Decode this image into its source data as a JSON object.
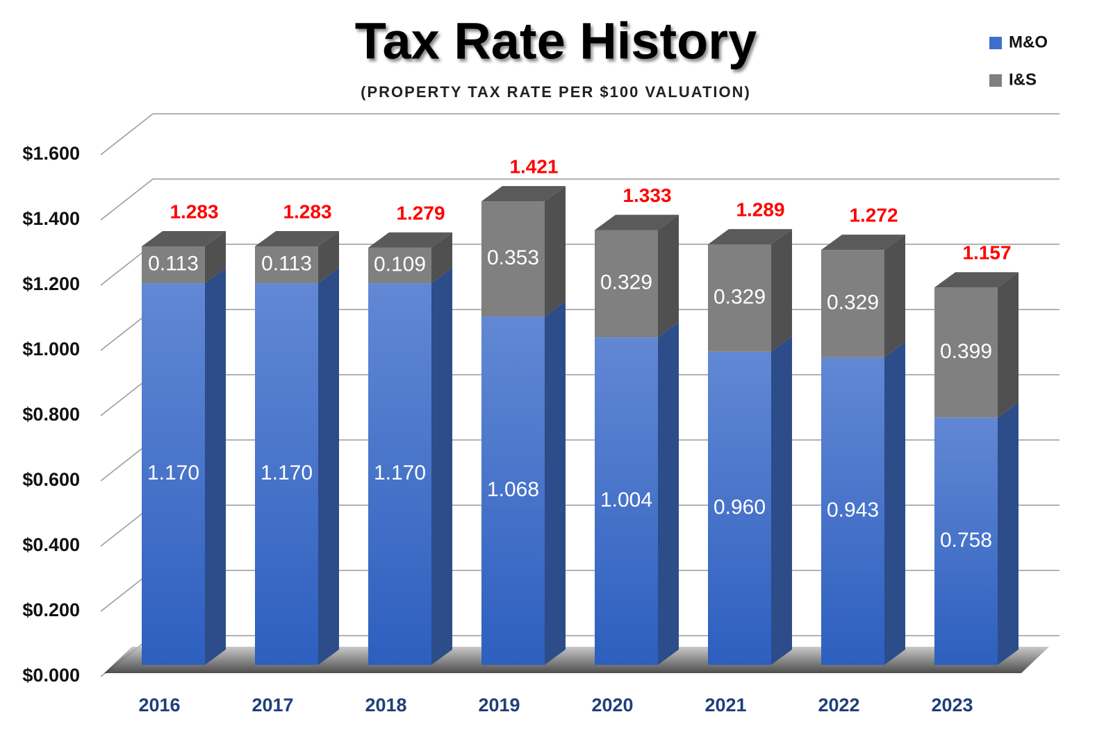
{
  "chart_data": {
    "type": "bar3d_stacked",
    "title": "Tax Rate History",
    "subtitle": "(PROPERTY TAX RATE PER $100 VALUATION)",
    "categories": [
      "2016",
      "2017",
      "2018",
      "2019",
      "2020",
      "2021",
      "2022",
      "2023"
    ],
    "series": [
      {
        "name": "M&O",
        "color": "#3f6fcc",
        "values": [
          1.17,
          1.17,
          1.17,
          1.068,
          1.004,
          0.96,
          0.943,
          0.758
        ],
        "value_labels": [
          "1.170",
          "1.170",
          "1.170",
          "1.068",
          "1.004",
          "0.960",
          "0.943",
          "0.758"
        ]
      },
      {
        "name": "I&S",
        "color": "#808080",
        "values": [
          0.113,
          0.113,
          0.109,
          0.353,
          0.329,
          0.329,
          0.329,
          0.399
        ],
        "value_labels": [
          "0.113",
          "0.113",
          "0.109",
          "0.353",
          "0.329",
          "0.329",
          "0.329",
          "0.399"
        ]
      }
    ],
    "totals": [
      1.283,
      1.283,
      1.279,
      1.421,
      1.333,
      1.289,
      1.272,
      1.157
    ],
    "ylim": [
      0,
      1.6
    ],
    "yticks": [
      {
        "value": 0,
        "label": "$0.000"
      },
      {
        "value": 0.2,
        "label": "$0.200"
      },
      {
        "value": 0.4,
        "label": "$0.400"
      },
      {
        "value": 0.6,
        "label": "$0.600"
      },
      {
        "value": 0.8,
        "label": "$0.800"
      },
      {
        "value": 1.0,
        "label": "$1.000"
      },
      {
        "value": 1.2,
        "label": "$1.200"
      },
      {
        "value": 1.4,
        "label": "$1.400"
      },
      {
        "value": 1.6,
        "label": "$1.600"
      }
    ],
    "grid": true,
    "legend": "top-right"
  }
}
